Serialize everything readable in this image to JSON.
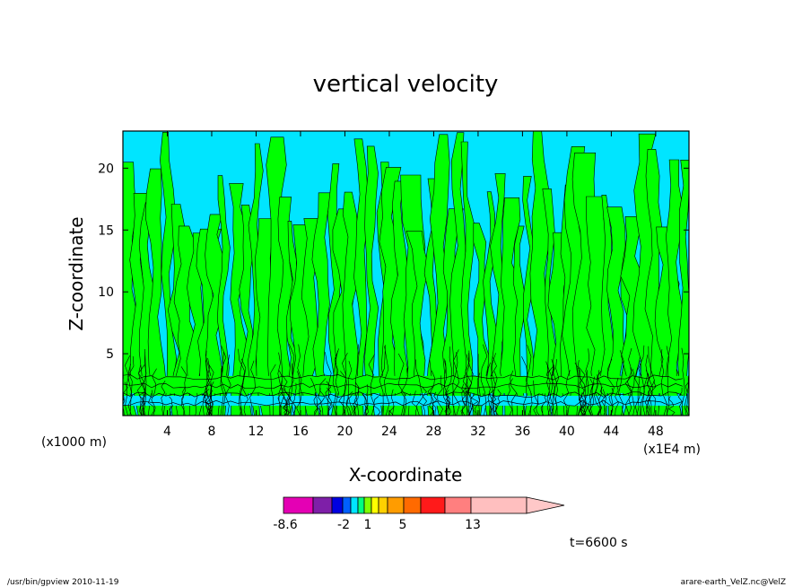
{
  "chart_data": {
    "type": "heatmap",
    "title": "vertical velocity",
    "xlabel": "X-coordinate",
    "ylabel": "Z-coordinate",
    "x_unit_left": "(x1000 m)",
    "x_unit_right": "(x1E4 m)",
    "xlim": [
      0,
      51
    ],
    "ylim": [
      0,
      23
    ],
    "x_ticks": [
      "4",
      "8",
      "12",
      "16",
      "20",
      "24",
      "28",
      "32",
      "36",
      "40",
      "44",
      "48"
    ],
    "x_tick_values": [
      4,
      8,
      12,
      16,
      20,
      24,
      28,
      32,
      36,
      40,
      44,
      48
    ],
    "y_ticks": [
      "5",
      "10",
      "15",
      "20"
    ],
    "y_tick_values": [
      5,
      10,
      15,
      20
    ],
    "grid": false,
    "dominant_fill_colors": {
      "negative": "#00e5ff",
      "positive": "#00ff00"
    },
    "contour_line_color": "#000000",
    "colorbar": {
      "segment_colors": [
        "#e400b4",
        "#7e1fa8",
        "#0000e0",
        "#0060ff",
        "#00e5ff",
        "#00ff7f",
        "#7fff00",
        "#ffff00",
        "#ffd000",
        "#ff9c00",
        "#ff6a00",
        "#ff1a1a",
        "#ff7f7f",
        "#ffbfbf"
      ],
      "tick_labels": [
        "-8.6",
        "-2",
        "1",
        "5",
        "13"
      ],
      "tick_values": [
        -8.6,
        -2,
        1,
        5,
        13
      ]
    },
    "time_label": "t=6600 s"
  },
  "footer": {
    "left": "/usr/bin/gpview   2010-11-19",
    "right": "arare-earth_VelZ.nc@VelZ"
  }
}
